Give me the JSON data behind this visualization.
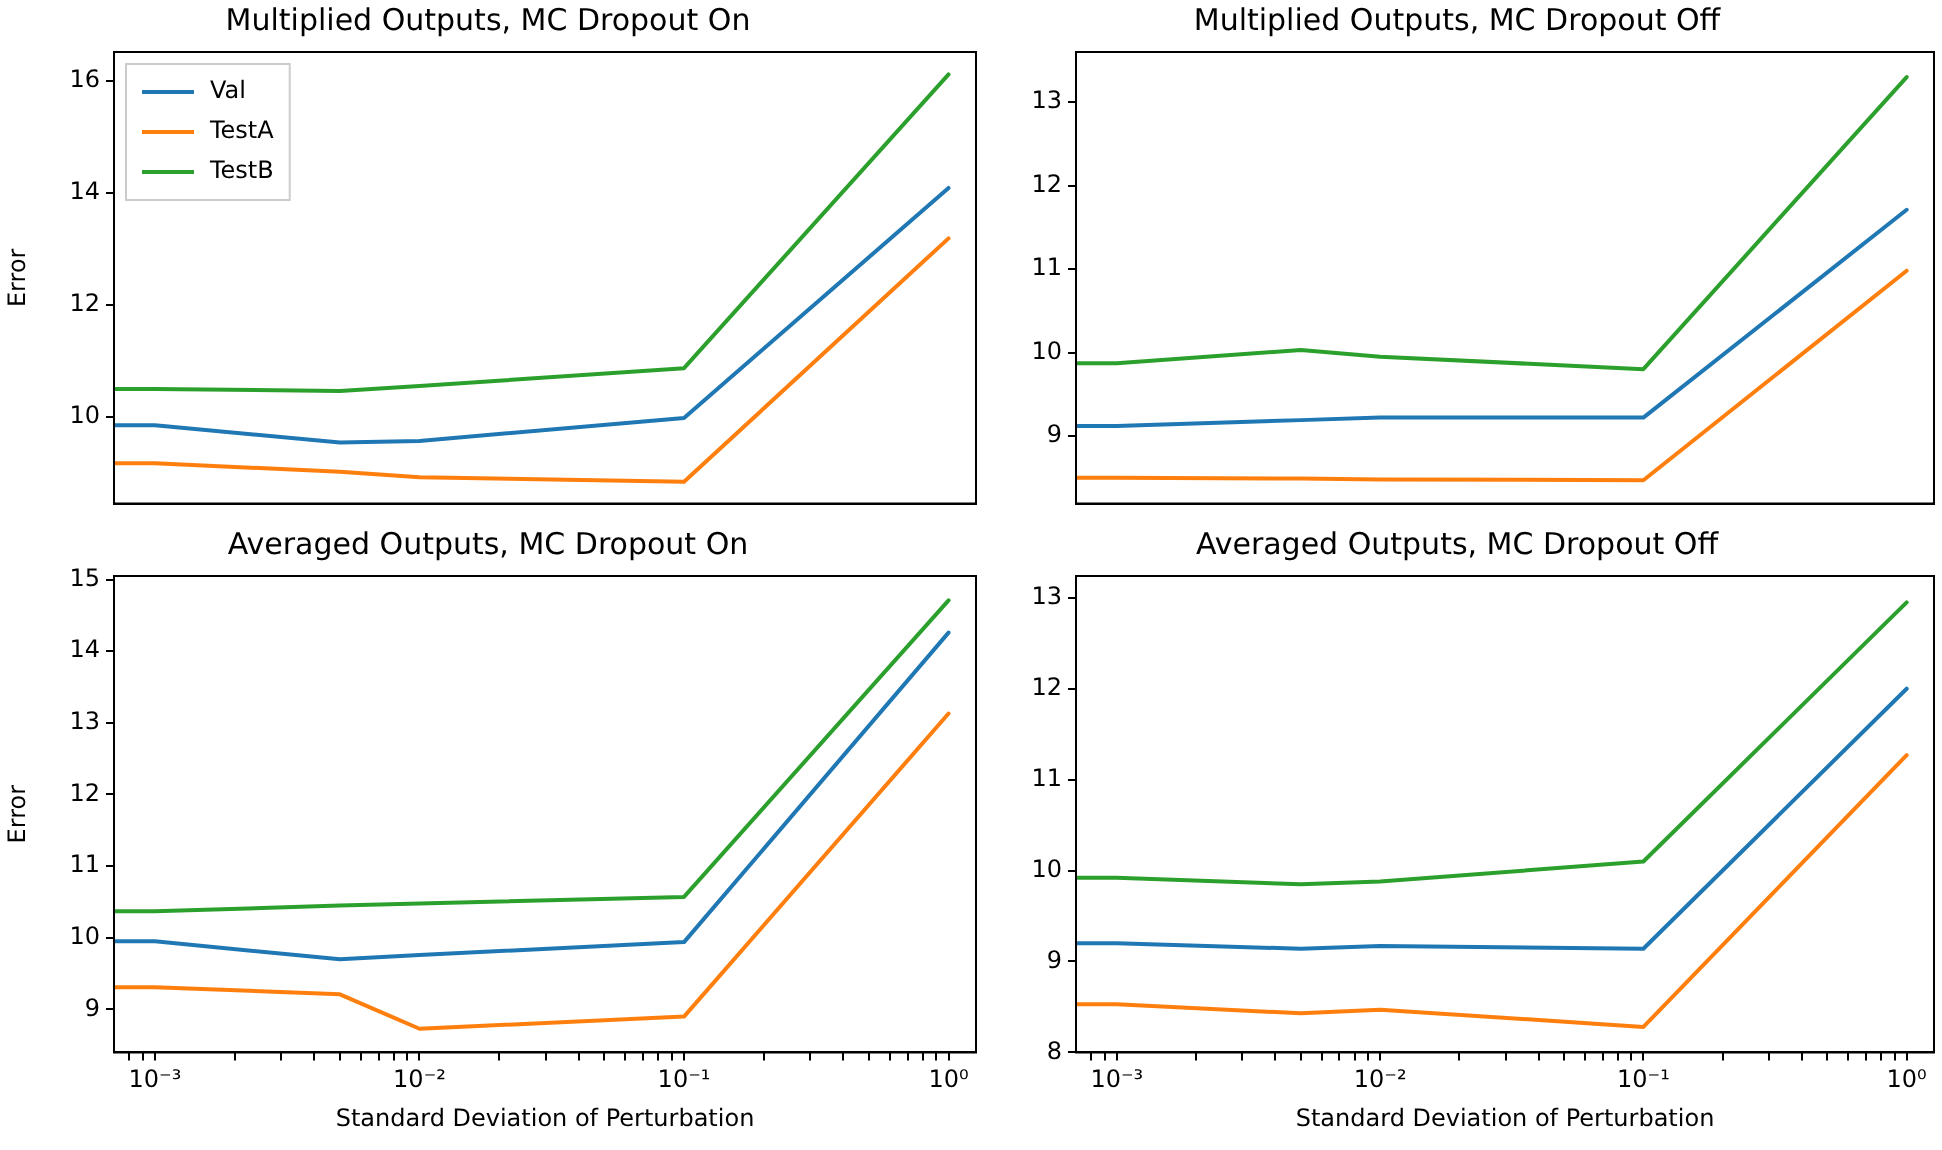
{
  "chart_data": [
    {
      "type": "line",
      "title": "Multiplied Outputs, MC Dropout On",
      "ylabel": "Error",
      "x": [
        0.0007,
        0.001,
        0.005,
        0.01,
        0.1,
        1
      ],
      "log": "x",
      "legend": "top left",
      "tick_labels": "y",
      "xlim": [
        0.0007,
        1.27
      ],
      "ylim": [
        8.45,
        16.52
      ],
      "yticks": [
        10,
        12,
        14,
        16
      ],
      "series": [
        {
          "name": "Val",
          "color": "#1f77b4",
          "values": [
            9.85,
            9.85,
            9.54,
            9.57,
            9.98,
            14.09
          ]
        },
        {
          "name": "TestA",
          "color": "#ff7f0e",
          "values": [
            9.17,
            9.17,
            9.02,
            8.92,
            8.84,
            13.19
          ]
        },
        {
          "name": "TestB",
          "color": "#2ca02c",
          "values": [
            10.5,
            10.5,
            10.46,
            10.55,
            10.87,
            16.12
          ]
        }
      ]
    },
    {
      "type": "line",
      "title": "Multiplied Outputs, MC Dropout Off",
      "x": [
        0.0007,
        0.001,
        0.005,
        0.01,
        0.1,
        1
      ],
      "log": "x",
      "tick_labels": "y",
      "xlim": [
        0.0007,
        1.27
      ],
      "ylim": [
        8.19,
        13.6
      ],
      "yticks": [
        9,
        10,
        11,
        12,
        13
      ],
      "series": [
        {
          "color": "#1f77b4",
          "values": [
            9.12,
            9.12,
            9.19,
            9.22,
            9.22,
            11.71
          ]
        },
        {
          "color": "#ff7f0e",
          "values": [
            8.5,
            8.5,
            8.49,
            8.48,
            8.47,
            10.98
          ]
        },
        {
          "color": "#2ca02c",
          "values": [
            9.87,
            9.87,
            10.03,
            9.95,
            9.8,
            13.3
          ]
        }
      ]
    },
    {
      "type": "line",
      "title": "Averaged Outputs, MC Dropout On",
      "xlabel": "Standard Deviation of Perturbation",
      "ylabel": "Error",
      "x": [
        0.0007,
        0.001,
        0.005,
        0.01,
        0.1,
        1
      ],
      "log": "x",
      "xlim": [
        0.0007,
        1.27
      ],
      "ylim": [
        8.4,
        15.05
      ],
      "yticks": [
        9,
        10,
        11,
        12,
        13,
        14,
        15
      ],
      "xticks": [
        {
          "value": 0.0008,
          "label": null
        },
        {
          "value": 0.0009,
          "label": null
        },
        {
          "value": 0.001,
          "label": "10⁻³"
        },
        {
          "value": 0.002,
          "label": null
        },
        {
          "value": 0.003,
          "label": null
        },
        {
          "value": 0.004,
          "label": null
        },
        {
          "value": 0.005,
          "label": null
        },
        {
          "value": 0.006,
          "label": null
        },
        {
          "value": 0.007,
          "label": null
        },
        {
          "value": 0.008,
          "label": null
        },
        {
          "value": 0.009,
          "label": null
        },
        {
          "value": 0.01,
          "label": "10⁻²"
        },
        {
          "value": 0.02,
          "label": null
        },
        {
          "value": 0.03,
          "label": null
        },
        {
          "value": 0.04,
          "label": null
        },
        {
          "value": 0.05,
          "label": null
        },
        {
          "value": 0.06,
          "label": null
        },
        {
          "value": 0.07,
          "label": null
        },
        {
          "value": 0.08,
          "label": null
        },
        {
          "value": 0.09,
          "label": null
        },
        {
          "value": 0.1,
          "label": "10⁻¹"
        },
        {
          "value": 0.2,
          "label": null
        },
        {
          "value": 0.3,
          "label": null
        },
        {
          "value": 0.4,
          "label": null
        },
        {
          "value": 0.5,
          "label": null
        },
        {
          "value": 0.6,
          "label": null
        },
        {
          "value": 0.7,
          "label": null
        },
        {
          "value": 0.8,
          "label": null
        },
        {
          "value": 0.9,
          "label": null
        },
        {
          "value": 1,
          "label": "10⁰"
        }
      ],
      "series": [
        {
          "color": "#1f77b4",
          "values": [
            9.95,
            9.95,
            9.7,
            9.76,
            9.94,
            14.26
          ]
        },
        {
          "color": "#ff7f0e",
          "values": [
            9.31,
            9.31,
            9.21,
            8.73,
            8.9,
            13.13
          ]
        },
        {
          "color": "#2ca02c",
          "values": [
            10.37,
            10.37,
            10.45,
            10.48,
            10.57,
            14.71
          ]
        }
      ]
    },
    {
      "type": "line",
      "title": "Averaged Outputs, MC Dropout Off",
      "xlabel": "Standard Deviation of Perturbation",
      "x": [
        0.0007,
        0.001,
        0.005,
        0.01,
        0.1,
        1
      ],
      "log": "x",
      "xlim": [
        0.0007,
        1.27
      ],
      "ylim": [
        8,
        13.24
      ],
      "yticks": [
        8,
        9,
        10,
        11,
        12,
        13
      ],
      "xticks": [
        {
          "value": 0.0008,
          "label": null
        },
        {
          "value": 0.0009,
          "label": null
        },
        {
          "value": 0.001,
          "label": "10⁻³"
        },
        {
          "value": 0.002,
          "label": null
        },
        {
          "value": 0.003,
          "label": null
        },
        {
          "value": 0.004,
          "label": null
        },
        {
          "value": 0.005,
          "label": null
        },
        {
          "value": 0.006,
          "label": null
        },
        {
          "value": 0.007,
          "label": null
        },
        {
          "value": 0.008,
          "label": null
        },
        {
          "value": 0.009,
          "label": null
        },
        {
          "value": 0.01,
          "label": "10⁻²"
        },
        {
          "value": 0.02,
          "label": null
        },
        {
          "value": 0.03,
          "label": null
        },
        {
          "value": 0.04,
          "label": null
        },
        {
          "value": 0.05,
          "label": null
        },
        {
          "value": 0.06,
          "label": null
        },
        {
          "value": 0.07,
          "label": null
        },
        {
          "value": 0.08,
          "label": null
        },
        {
          "value": 0.09,
          "label": null
        },
        {
          "value": 0.1,
          "label": "10⁻¹"
        },
        {
          "value": 0.2,
          "label": null
        },
        {
          "value": 0.3,
          "label": null
        },
        {
          "value": 0.4,
          "label": null
        },
        {
          "value": 0.5,
          "label": null
        },
        {
          "value": 0.6,
          "label": null
        },
        {
          "value": 0.7,
          "label": null
        },
        {
          "value": 0.8,
          "label": null
        },
        {
          "value": 0.9,
          "label": null
        },
        {
          "value": 1,
          "label": "10⁰"
        }
      ],
      "series": [
        {
          "color": "#1f77b4",
          "values": [
            9.2,
            9.2,
            9.14,
            9.17,
            9.14,
            12.0
          ]
        },
        {
          "color": "#ff7f0e",
          "values": [
            8.53,
            8.53,
            8.43,
            8.47,
            8.28,
            11.27
          ]
        },
        {
          "color": "#2ca02c",
          "values": [
            9.92,
            9.92,
            9.85,
            9.88,
            10.1,
            12.95
          ]
        }
      ]
    }
  ]
}
